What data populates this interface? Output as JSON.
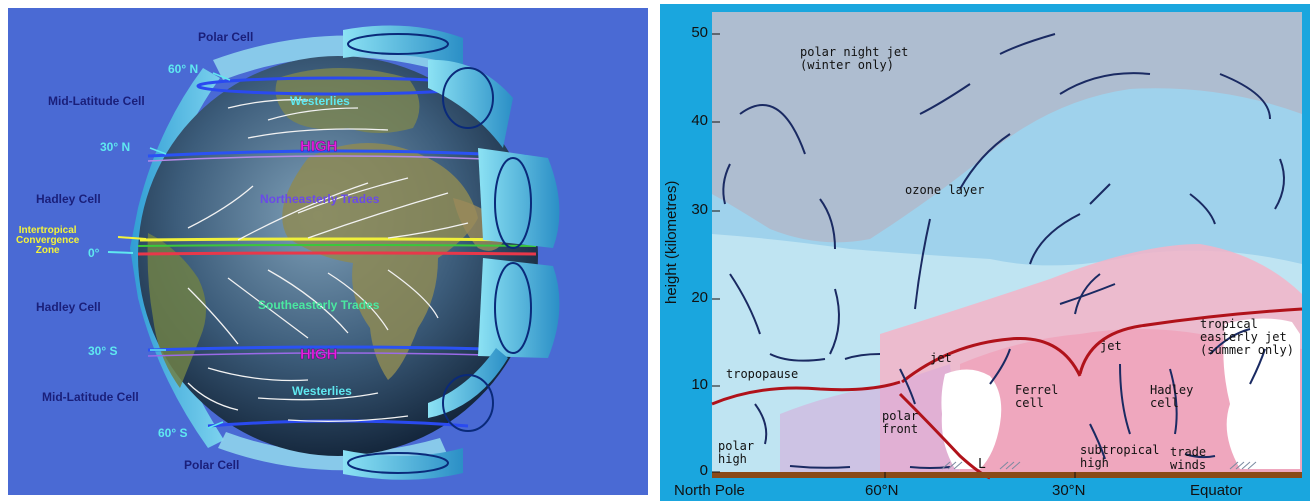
{
  "left_panel": {
    "cells": {
      "polar_top": "Polar Cell",
      "mid_lat_top": "Mid-Latitude Cell",
      "hadley_top": "Hadley Cell",
      "hadley_bottom": "Hadley Cell",
      "mid_lat_bottom": "Mid-Latitude Cell",
      "polar_bottom": "Polar Cell"
    },
    "latitudes": {
      "n60": "60° N",
      "n30": "30° N",
      "equator": "0°",
      "s30": "30° S",
      "s60": "60° S"
    },
    "itcz_line1": "Intertropical",
    "itcz_line2": "Convergence",
    "itcz_line3": "Zone",
    "high_north": "HIGH",
    "high_south": "HIGH",
    "winds": {
      "westerlies_north": "Westerlies",
      "ne_trades": "Northeasterly Trades",
      "se_trades": "Southeasterly Trades",
      "westerlies_south": "Westerlies"
    },
    "colors": {
      "background": "#4a6ad4",
      "label_navy": "#1a1f7a",
      "label_cyan": "#5fe8f0",
      "high": "#e81ee0",
      "itcz": "#f4f43a"
    }
  },
  "right_panel": {
    "y_axis_label": "height (kilometres)",
    "y_ticks": [
      "50",
      "40",
      "30",
      "20",
      "10",
      "0"
    ],
    "x_labels": [
      "North Pole",
      "60°N",
      "30°N",
      "Equator"
    ],
    "labels": {
      "polar_night_jet_1": "polar night jet",
      "polar_night_jet_2": "(winter only)",
      "ozone_layer": "ozone layer",
      "tropopause": "tropopause",
      "jet_left": "jet",
      "jet_right": "jet",
      "polar_front_1": "polar",
      "polar_front_2": "front",
      "ferrel_1": "Ferrel",
      "ferrel_2": "cell",
      "hadley_1": "Hadley",
      "hadley_2": "cell",
      "tropical_jet_1": "tropical",
      "tropical_jet_2": "easterly jet",
      "tropical_jet_3": "(summer only)",
      "polar_high_1": "polar",
      "polar_high_2": "high",
      "subtropical_1": "subtropical",
      "subtropical_2": "high",
      "trade_1": "trade",
      "trade_2": "winds",
      "low": "L"
    },
    "colors": {
      "sky_light": "#bfe4f2",
      "sky_mid": "#8ccbe8",
      "ozone": "#a9bfd2",
      "pink": "#f3b4c8",
      "tropopause": "#b0121a",
      "ground": "#8a4a18",
      "frame": "#1aa6de"
    }
  }
}
